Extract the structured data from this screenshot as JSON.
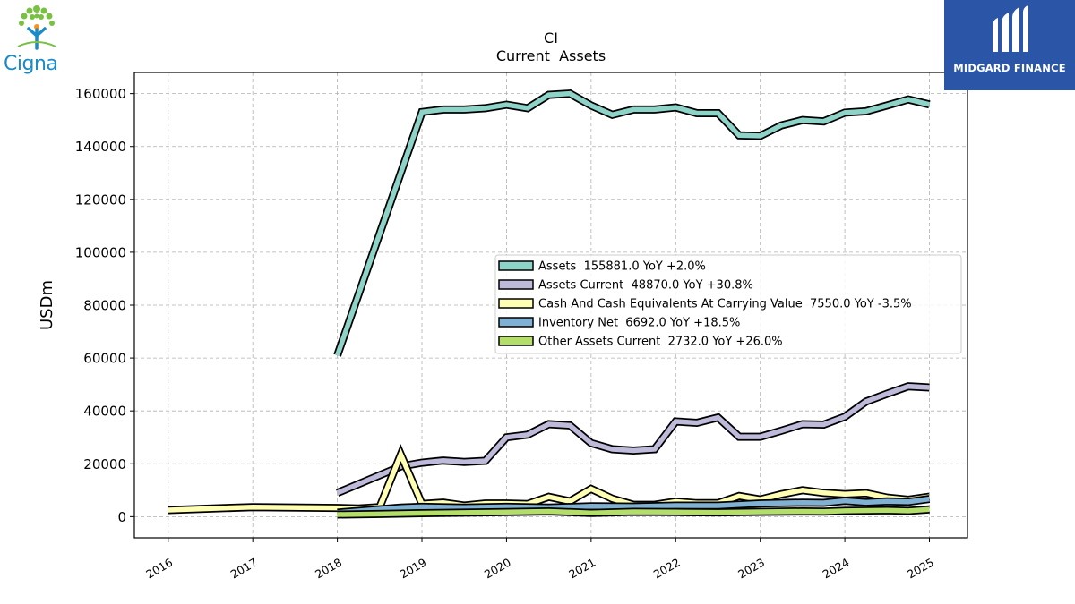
{
  "logos": {
    "left_text": "Cigna",
    "right_text": "MIDGARD FINANCE",
    "left_icon": "tree-icon",
    "right_icon": "midgard-mark-icon",
    "left_color": "#1b8ac8",
    "right_bg": "#2b55a6"
  },
  "chart_data": {
    "type": "line",
    "title": "CI",
    "subtitle": "Current  Assets",
    "ylabel": "USDm",
    "xlabel": "",
    "ylim": [
      -8000,
      168000
    ],
    "xlim": [
      2015.6,
      2025.45
    ],
    "yticks": [
      0,
      20000,
      40000,
      60000,
      80000,
      100000,
      120000,
      140000,
      160000
    ],
    "ytick_labels": [
      "0",
      "20000",
      "40000",
      "60000",
      "80000",
      "100000",
      "120000",
      "140000",
      "160000"
    ],
    "xticks": [
      2016,
      2017,
      2018,
      2019,
      2020,
      2021,
      2022,
      2023,
      2024,
      2025
    ],
    "xtick_labels": [
      "2016",
      "2017",
      "2018",
      "2019",
      "2020",
      "2021",
      "2022",
      "2023",
      "2024",
      "2025"
    ],
    "grid": true,
    "legend_position": "center-right",
    "series": [
      {
        "name": "Assets  155881.0 YoY +2.0%",
        "color": "#8dd3c7",
        "points": [
          [
            2018.0,
            61000
          ],
          [
            2019.0,
            153000
          ],
          [
            2019.25,
            154000
          ],
          [
            2019.5,
            154000
          ],
          [
            2019.75,
            154500
          ],
          [
            2020.0,
            155800
          ],
          [
            2020.25,
            154500
          ],
          [
            2020.5,
            159500
          ],
          [
            2020.75,
            160000
          ],
          [
            2021.0,
            155500
          ],
          [
            2021.25,
            152000
          ],
          [
            2021.5,
            154000
          ],
          [
            2021.75,
            154000
          ],
          [
            2022.0,
            154800
          ],
          [
            2022.25,
            152600
          ],
          [
            2022.5,
            152600
          ],
          [
            2022.75,
            144200
          ],
          [
            2023.0,
            144000
          ],
          [
            2023.25,
            148000
          ],
          [
            2023.5,
            150000
          ],
          [
            2023.75,
            149500
          ],
          [
            2024.0,
            152800
          ],
          [
            2024.25,
            153300
          ],
          [
            2024.5,
            155500
          ],
          [
            2024.75,
            157800
          ],
          [
            2025.0,
            155881
          ]
        ]
      },
      {
        "name": "Assets Current  48870.0 YoY +30.8%",
        "color": "#bebada",
        "points": [
          [
            2018.0,
            9000
          ],
          [
            2018.75,
            19000
          ],
          [
            2019.0,
            20400
          ],
          [
            2019.25,
            21200
          ],
          [
            2019.5,
            20700
          ],
          [
            2019.75,
            21100
          ],
          [
            2020.0,
            30000
          ],
          [
            2020.25,
            31000
          ],
          [
            2020.5,
            35000
          ],
          [
            2020.75,
            34500
          ],
          [
            2021.0,
            27800
          ],
          [
            2021.25,
            25500
          ],
          [
            2021.5,
            25000
          ],
          [
            2021.75,
            25500
          ],
          [
            2022.0,
            36000
          ],
          [
            2022.25,
            35500
          ],
          [
            2022.5,
            37500
          ],
          [
            2022.75,
            30200
          ],
          [
            2023.0,
            30200
          ],
          [
            2023.25,
            32500
          ],
          [
            2023.5,
            35000
          ],
          [
            2023.75,
            34800
          ],
          [
            2024.0,
            37800
          ],
          [
            2024.25,
            43500
          ],
          [
            2024.5,
            46500
          ],
          [
            2024.75,
            49300
          ],
          [
            2025.0,
            48870
          ]
        ]
      },
      {
        "name": "Cash And Cash Equivalents At Carrying Value  7550.0 YoY -3.5%",
        "color": "#ffffb3",
        "points": [
          [
            2016.0,
            2500
          ],
          [
            2017.0,
            3600
          ],
          [
            2018.0,
            3300
          ],
          [
            2018.25,
            3100
          ],
          [
            2018.5,
            3600
          ],
          [
            2018.75,
            23500
          ],
          [
            2019.0,
            4800
          ],
          [
            2019.25,
            5300
          ],
          [
            2019.5,
            4200
          ],
          [
            2019.75,
            5000
          ],
          [
            2020.0,
            5000
          ],
          [
            2020.25,
            4800
          ],
          [
            2020.5,
            7500
          ],
          [
            2020.75,
            5800
          ],
          [
            2021.0,
            10500
          ],
          [
            2021.25,
            6800
          ],
          [
            2021.5,
            4500
          ],
          [
            2021.75,
            4500
          ],
          [
            2022.0,
            5700
          ],
          [
            2022.25,
            5100
          ],
          [
            2022.5,
            5100
          ],
          [
            2022.75,
            7800
          ],
          [
            2023.0,
            6500
          ],
          [
            2023.25,
            8500
          ],
          [
            2023.5,
            10000
          ],
          [
            2023.75,
            9000
          ],
          [
            2024.0,
            8500
          ],
          [
            2024.25,
            8900
          ],
          [
            2024.5,
            7200
          ],
          [
            2024.75,
            6400
          ],
          [
            2025.0,
            7550
          ]
        ]
      },
      {
        "name": "Inventory Net  6692.0 YoY +18.5%",
        "color": "#80b1d3",
        "points": [
          [
            2018.0,
            1500
          ],
          [
            2018.75,
            3400
          ],
          [
            2019.0,
            3700
          ],
          [
            2019.5,
            3400
          ],
          [
            2020.0,
            3700
          ],
          [
            2020.5,
            3400
          ],
          [
            2021.0,
            3900
          ],
          [
            2021.5,
            3800
          ],
          [
            2022.0,
            4200
          ],
          [
            2022.5,
            4200
          ],
          [
            2023.0,
            5000
          ],
          [
            2023.5,
            5300
          ],
          [
            2023.75,
            5200
          ],
          [
            2024.0,
            6000
          ],
          [
            2024.25,
            5400
          ],
          [
            2024.5,
            5800
          ],
          [
            2024.75,
            5600
          ],
          [
            2025.0,
            6692
          ]
        ]
      },
      {
        "name": "Other Assets Current  2732.0 YoY +26.0%",
        "color": "#b3de69",
        "points": [
          [
            2018.0,
            800
          ],
          [
            2018.5,
            1000
          ],
          [
            2019.0,
            1300
          ],
          [
            2019.5,
            1500
          ],
          [
            2020.0,
            1700
          ],
          [
            2020.5,
            2000
          ],
          [
            2021.0,
            1400
          ],
          [
            2021.5,
            1800
          ],
          [
            2022.0,
            1700
          ],
          [
            2022.5,
            1600
          ],
          [
            2023.0,
            1800
          ],
          [
            2023.5,
            2000
          ],
          [
            2023.75,
            1900
          ],
          [
            2024.0,
            2200
          ],
          [
            2024.5,
            2400
          ],
          [
            2024.75,
            2200
          ],
          [
            2025.0,
            2732
          ]
        ]
      }
    ]
  }
}
